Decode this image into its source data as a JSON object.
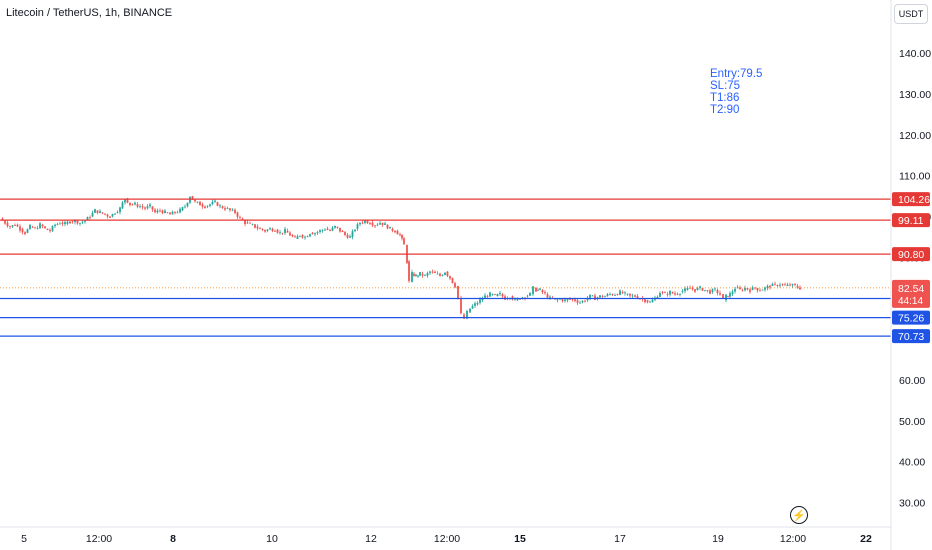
{
  "header": {
    "title": "Litecoin / TetherUS, 1h, BINANCE",
    "unit_button": "USDT"
  },
  "annotation": {
    "lines": [
      "Entry:79.5",
      "SL:75",
      "T1:86",
      "T2:90"
    ],
    "color": "#2962ff"
  },
  "colors": {
    "up": "#26a69a",
    "down": "#ef5350",
    "resistance": "#e53935",
    "support": "#1e53e5",
    "axis_text": "#131722",
    "current_price_bg": "#ef5350"
  },
  "icons": {
    "replay": "lightning-circle-icon"
  },
  "chart_data": {
    "type": "candlestick",
    "title": "Litecoin / TetherUS, 1h, BINANCE",
    "ylim": [
      24,
      153
    ],
    "y_ticks": [
      30,
      40,
      50,
      60,
      70,
      80,
      90,
      100,
      110,
      120,
      130,
      140
    ],
    "y_tick_labels": [
      "30.00",
      "40.00",
      "50.00",
      "60.00",
      "70.00",
      "80.00",
      "90.00",
      "100.00",
      "110.00",
      "120.00",
      "130.00",
      "140.00"
    ],
    "x_tick_labels": [
      "5",
      "12:00",
      "8",
      "10",
      "12",
      "12:00",
      "15",
      "17",
      "19",
      "12:00",
      "22"
    ],
    "x_tick_bold": [
      false,
      false,
      true,
      false,
      false,
      false,
      true,
      false,
      false,
      false,
      true
    ],
    "price_series": [
      [
        0,
        99.5
      ],
      [
        5,
        98.5
      ],
      [
        10,
        97.5
      ],
      [
        15,
        98.0
      ],
      [
        20,
        97.0
      ],
      [
        25,
        96.0
      ],
      [
        30,
        97.5
      ],
      [
        35,
        97.0
      ],
      [
        40,
        98.0
      ],
      [
        45,
        97.0
      ],
      [
        50,
        96.5
      ],
      [
        55,
        98.0
      ],
      [
        60,
        98.5
      ],
      [
        65,
        98.2
      ],
      [
        70,
        98.8
      ],
      [
        75,
        99.0
      ],
      [
        80,
        98.5
      ],
      [
        85,
        99.0
      ],
      [
        90,
        100.0
      ],
      [
        95,
        101.5
      ],
      [
        100,
        101.0
      ],
      [
        105,
        100.5
      ],
      [
        110,
        100.0
      ],
      [
        115,
        101.0
      ],
      [
        120,
        102.0
      ],
      [
        125,
        104.5
      ],
      [
        130,
        103.0
      ],
      [
        135,
        103.0
      ],
      [
        140,
        102.5
      ],
      [
        145,
        102.0
      ],
      [
        150,
        102.5
      ],
      [
        155,
        101.0
      ],
      [
        160,
        101.5
      ],
      [
        165,
        101.0
      ],
      [
        170,
        100.5
      ],
      [
        175,
        101.0
      ],
      [
        180,
        101.5
      ],
      [
        185,
        102.5
      ],
      [
        190,
        105.0
      ],
      [
        195,
        103.5
      ],
      [
        200,
        103.0
      ],
      [
        205,
        102.5
      ],
      [
        210,
        103.0
      ],
      [
        215,
        103.5
      ],
      [
        220,
        102.5
      ],
      [
        225,
        102.0
      ],
      [
        230,
        101.5
      ],
      [
        235,
        101.0
      ],
      [
        240,
        99.5
      ],
      [
        245,
        98.5
      ],
      [
        250,
        98.0
      ],
      [
        255,
        97.5
      ],
      [
        260,
        97.0
      ],
      [
        265,
        96.5
      ],
      [
        270,
        97.0
      ],
      [
        275,
        96.8
      ],
      [
        280,
        96.0
      ],
      [
        285,
        96.5
      ],
      [
        290,
        95.5
      ],
      [
        295,
        94.5
      ],
      [
        300,
        95.5
      ],
      [
        305,
        95.0
      ],
      [
        310,
        96.0
      ],
      [
        315,
        96.0
      ],
      [
        320,
        96.5
      ],
      [
        325,
        97.0
      ],
      [
        330,
        96.5
      ],
      [
        335,
        97.5
      ],
      [
        340,
        96.5
      ],
      [
        345,
        95.5
      ],
      [
        350,
        95.0
      ],
      [
        355,
        97.0
      ],
      [
        360,
        98.5
      ],
      [
        365,
        99.0
      ],
      [
        370,
        98.5
      ],
      [
        375,
        98.0
      ],
      [
        380,
        98.5
      ],
      [
        385,
        98.0
      ],
      [
        390,
        97.0
      ],
      [
        395,
        96.5
      ],
      [
        400,
        95.5
      ],
      [
        404,
        93.0
      ],
      [
        407,
        89.0
      ],
      [
        409,
        84.0
      ],
      [
        412,
        86.0
      ],
      [
        416,
        85.5
      ],
      [
        420,
        86.0
      ],
      [
        425,
        85.5
      ],
      [
        430,
        86.5
      ],
      [
        435,
        86.0
      ],
      [
        440,
        85.5
      ],
      [
        445,
        86.5
      ],
      [
        450,
        85.0
      ],
      [
        455,
        83.0
      ],
      [
        458,
        80.0
      ],
      [
        461,
        76.0
      ],
      [
        464,
        75.0
      ],
      [
        467,
        76.5
      ],
      [
        470,
        77.5
      ],
      [
        475,
        78.5
      ],
      [
        480,
        79.5
      ],
      [
        485,
        80.5
      ],
      [
        490,
        81.0
      ],
      [
        495,
        80.5
      ],
      [
        500,
        81.0
      ],
      [
        505,
        80.0
      ],
      [
        510,
        80.5
      ],
      [
        515,
        79.5
      ],
      [
        520,
        80.0
      ],
      [
        525,
        80.5
      ],
      [
        530,
        81.0
      ],
      [
        533,
        82.5
      ],
      [
        536,
        82.0
      ],
      [
        540,
        82.0
      ],
      [
        545,
        81.0
      ],
      [
        550,
        80.0
      ],
      [
        555,
        79.5
      ],
      [
        560,
        79.8
      ],
      [
        565,
        79.5
      ],
      [
        570,
        79.8
      ],
      [
        575,
        79.5
      ],
      [
        580,
        79.0
      ],
      [
        585,
        79.5
      ],
      [
        590,
        80.5
      ],
      [
        595,
        80.0
      ],
      [
        600,
        80.5
      ],
      [
        605,
        80.5
      ],
      [
        610,
        81.0
      ],
      [
        615,
        81.0
      ],
      [
        620,
        81.5
      ],
      [
        625,
        81.0
      ],
      [
        630,
        80.5
      ],
      [
        635,
        80.5
      ],
      [
        640,
        80.0
      ],
      [
        645,
        79.5
      ],
      [
        650,
        79.0
      ],
      [
        655,
        80.0
      ],
      [
        660,
        81.5
      ],
      [
        665,
        81.0
      ],
      [
        670,
        81.5
      ],
      [
        675,
        81.0
      ],
      [
        680,
        81.5
      ],
      [
        685,
        82.0
      ],
      [
        690,
        82.5
      ],
      [
        695,
        82.0
      ],
      [
        700,
        82.5
      ],
      [
        705,
        82.0
      ],
      [
        710,
        81.5
      ],
      [
        715,
        82.0
      ],
      [
        720,
        81.0
      ],
      [
        723,
        79.5
      ],
      [
        726,
        80.5
      ],
      [
        730,
        81.0
      ],
      [
        735,
        82.5
      ],
      [
        740,
        82.0
      ],
      [
        745,
        82.5
      ],
      [
        750,
        82.0
      ],
      [
        755,
        82.5
      ],
      [
        760,
        82.0
      ],
      [
        765,
        82.5
      ],
      [
        770,
        83.0
      ],
      [
        775,
        83.2
      ],
      [
        780,
        83.5
      ],
      [
        785,
        83.0
      ],
      [
        790,
        83.2
      ],
      [
        795,
        83.0
      ],
      [
        800,
        82.5
      ]
    ],
    "horizontal_levels": [
      {
        "value": 104.26,
        "label": "104.26",
        "kind": "resistance"
      },
      {
        "value": 99.11,
        "label": "99.11",
        "kind": "resistance"
      },
      {
        "value": 90.8,
        "label": "90.80",
        "kind": "resistance"
      },
      {
        "value": 79.93,
        "label": "79.93",
        "kind": "support"
      },
      {
        "value": 75.26,
        "label": "75.26",
        "kind": "support"
      },
      {
        "value": 70.73,
        "label": "70.73",
        "kind": "support"
      }
    ],
    "current_price": {
      "value": 82.54,
      "label": "82.54",
      "countdown": "44:14"
    },
    "dotted_level": 82.54
  }
}
